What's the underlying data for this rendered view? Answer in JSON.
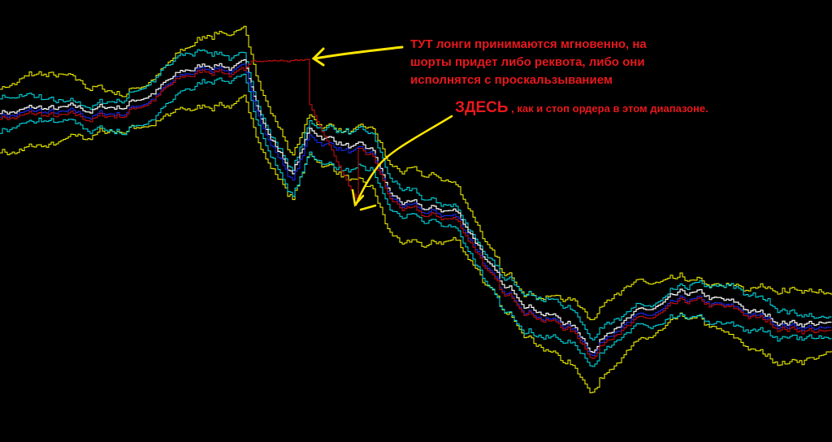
{
  "annotations": {
    "note1_lines": [
      "ТУТ лонги принимаются мгновенно, на",
      "шорты придет либо реквота, либо они",
      "исполнятся с проскальзыванием"
    ],
    "note2_big": "ЗДЕСЬ",
    "note2_rest": " ,  как и стоп ордера в этом диапазоне."
  },
  "chart_data": {
    "type": "line",
    "title": "",
    "xlabel": "",
    "ylabel": "",
    "grid": false,
    "background": "#000000",
    "x": [
      0,
      50,
      100,
      150,
      200,
      230,
      270,
      300,
      330,
      360,
      380,
      420,
      460,
      480,
      520,
      560,
      590,
      620,
      660,
      700,
      730,
      760,
      800,
      850,
      900,
      950,
      1000,
      1023
    ],
    "mid": [
      40.4,
      40.4,
      39.4,
      40.4,
      43.4,
      44.9,
      46.4,
      45.4,
      37.4,
      32.4,
      37.4,
      36.4,
      34.4,
      29.4,
      27.4,
      27.4,
      23.4,
      17.4,
      16.4,
      14.4,
      11.4,
      15.4,
      15.4,
      16.4,
      15.4,
      14.4,
      14.4,
      13.4
    ],
    "red_override": {
      "x": [
        300,
        310,
        380,
        381,
        440
      ],
      "values": [
        45.4,
        47,
        47,
        41.4,
        29.4
      ]
    },
    "series": [
      {
        "role": "upper-outer-band",
        "color": "#ffff00",
        "offset": 3.4
      },
      {
        "role": "lower-outer-band",
        "color": "#ffff00",
        "offset": -3.4
      },
      {
        "role": "upper-band",
        "color": "#00e5ee",
        "offset": 1.8
      },
      {
        "role": "lower-band",
        "color": "#00e5ee",
        "offset": -1.8
      },
      {
        "role": "price",
        "color": "#ffffff",
        "offset": 0.6
      },
      {
        "role": "average",
        "color": "#1a2cff",
        "offset": 0
      },
      {
        "role": "signal",
        "color": "#d01010",
        "offset": -0.3
      }
    ],
    "arrow_color": "#ffe600"
  }
}
